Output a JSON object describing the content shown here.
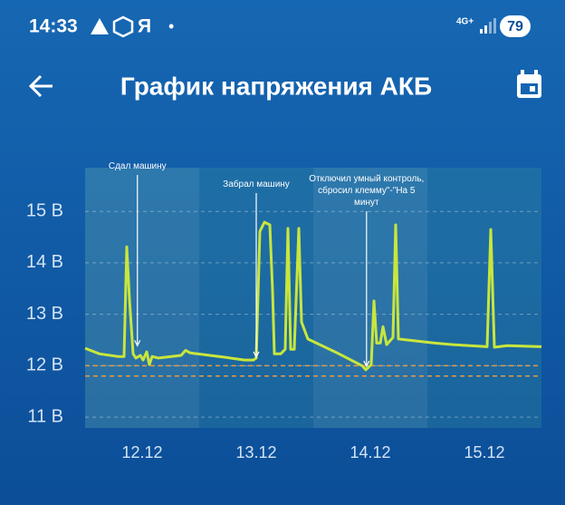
{
  "status_bar": {
    "time": "14:33",
    "letter": "Я",
    "dot": "•",
    "network": "4G+",
    "battery": "79"
  },
  "header": {
    "title": "График напряжения АКБ"
  },
  "chart_data": {
    "type": "line",
    "color": "#c8e63c",
    "x": [
      0,
      3.05,
      6.86,
      8.19,
      8.76,
      9.33,
      10.1,
      10.67,
      11.62,
      12.19,
      12.95,
      13.52,
      14.1,
      15.43,
      20.19,
      21.14,
      22.1,
      29.71,
      33.52,
      35.43,
      36.0,
      36.76,
      37.71,
      38.86,
      39.43,
      39.81,
      41.14,
      42.1,
      42.67,
      43.24,
      44.0,
      44.95,
      45.52,
      46.86,
      52.57,
      58.29,
      59.05,
      60.19,
      60.76,
      61.33,
      62.1,
      62.67,
      63.43,
      64.76,
      65.33,
      65.9,
      69.71,
      73.52,
      77.33,
      84.57,
      85.33,
      86.1,
      88.76,
      96
    ],
    "values": [
      12.34,
      12.23,
      12.18,
      12.18,
      14.31,
      13.29,
      12.23,
      12.15,
      12.2,
      12.11,
      12.27,
      12.02,
      12.18,
      12.15,
      12.2,
      12.3,
      12.25,
      12.16,
      12.11,
      12.11,
      12.15,
      14.61,
      14.79,
      14.74,
      13.47,
      12.23,
      12.23,
      12.32,
      14.67,
      12.32,
      12.32,
      14.67,
      12.85,
      12.52,
      12.27,
      12.0,
      11.92,
      12.02,
      13.26,
      12.44,
      12.44,
      12.76,
      12.41,
      12.55,
      14.74,
      12.52,
      12.48,
      12.44,
      12.41,
      12.37,
      14.65,
      12.36,
      12.39,
      12.37
    ],
    "xlim": [
      0,
      96
    ],
    "xticks": [
      {
        "value": 12,
        "label": "12.12"
      },
      {
        "value": 36,
        "label": "13.12"
      },
      {
        "value": 60,
        "label": "14.12"
      },
      {
        "value": 84,
        "label": "15.12"
      }
    ],
    "ylim": [
      10.79,
      15.85
    ],
    "yticks": [
      {
        "value": 11,
        "label": "11 В"
      },
      {
        "value": 12,
        "label": "12 В"
      },
      {
        "value": 13,
        "label": "13 В"
      },
      {
        "value": 14,
        "label": "14 В"
      },
      {
        "value": 15,
        "label": "15 В"
      }
    ],
    "grid": true,
    "thresholds": [
      12.0,
      11.8
    ],
    "threshold_color": "#e39a45",
    "annotations": [
      {
        "lines": [
          "Сдал машину"
        ],
        "x": 11.0,
        "y": 12.37
      },
      {
        "lines": [
          "Забрал машину"
        ],
        "x": 36.0,
        "y": 12.15
      },
      {
        "lines": [
          "Отключил умный контроль,",
          "сбросил клемму\"-\"На 5",
          "минут"
        ],
        "x": 59.2,
        "y": 11.97
      }
    ]
  }
}
